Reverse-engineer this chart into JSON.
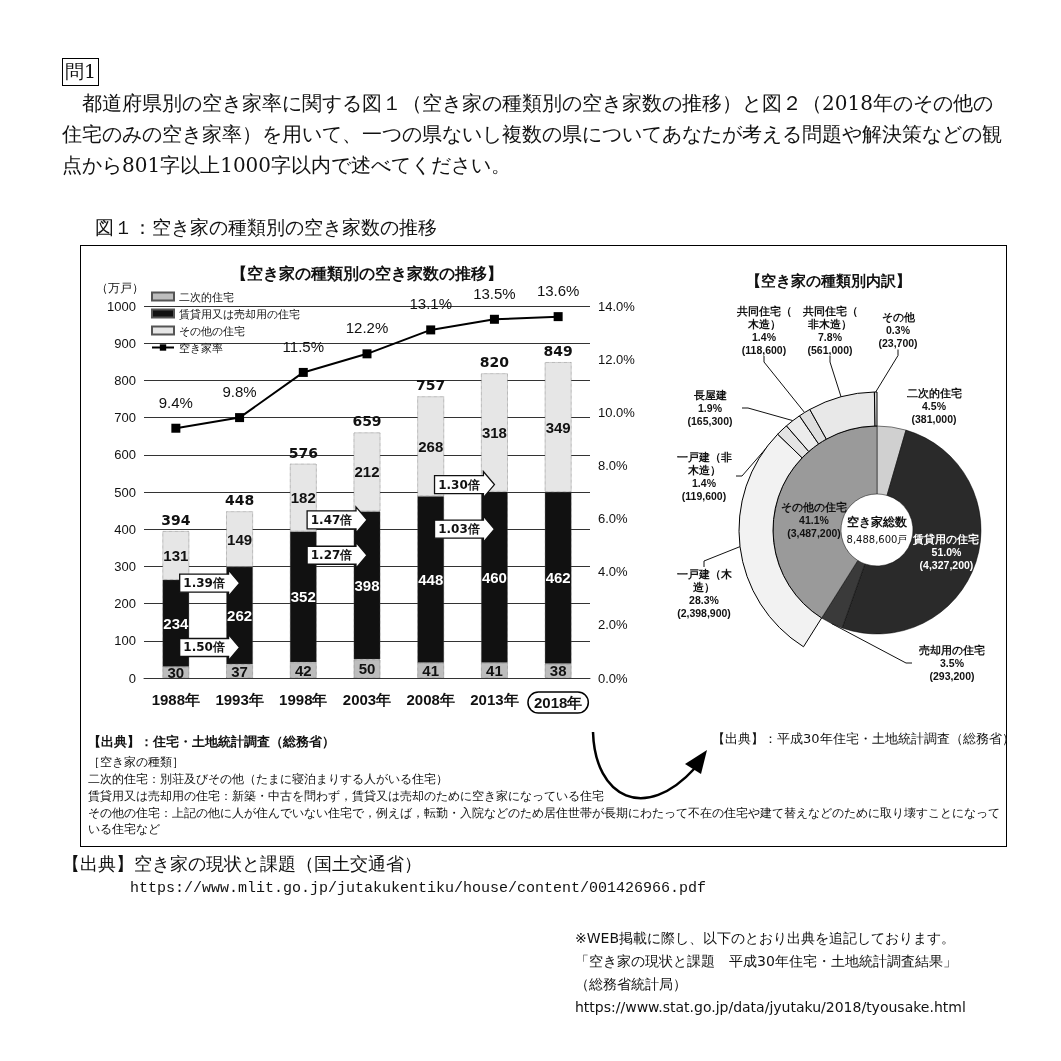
{
  "chart_data": [
    {
      "type": "bar",
      "title": "【空き家の種類別の空き家数の推移】",
      "ylabel": "（万戸）",
      "categories": [
        "1988年",
        "1993年",
        "1998年",
        "2003年",
        "2008年",
        "2013年",
        "2018年"
      ],
      "series": [
        {
          "name": "二次的住宅",
          "color": "#bdbdbd",
          "values": [
            30,
            37,
            42,
            50,
            41,
            41,
            38
          ]
        },
        {
          "name": "賃貸用又は売却用の住宅",
          "color": "#111111",
          "values": [
            234,
            262,
            352,
            398,
            448,
            460,
            462
          ]
        },
        {
          "name": "その他の住宅",
          "color": "#e6e6e6",
          "values": [
            131,
            149,
            182,
            212,
            268,
            318,
            349
          ]
        },
        {
          "name": "空き家率",
          "type": "line",
          "axis": "y2",
          "color": "#000000",
          "values": [
            9.4,
            9.8,
            11.5,
            12.2,
            13.1,
            13.5,
            13.6
          ],
          "value_labels": [
            "9.4%",
            "9.8%",
            "11.5%",
            "12.2%",
            "13.1%",
            "13.5%",
            "13.6%"
          ]
        }
      ],
      "stacked": true,
      "data_labels": true,
      "totals": [
        "394",
        "448",
        "576",
        "659",
        "757",
        "820",
        "849"
      ],
      "ylim": [
        0,
        1000
      ],
      "yticks": [
        0,
        100,
        200,
        300,
        400,
        500,
        600,
        700,
        800,
        900,
        1000
      ],
      "y2lim": [
        0,
        14
      ],
      "y2ticks": [
        {
          "value": 0,
          "label": "0.0%"
        },
        {
          "value": 2,
          "label": "2.0%"
        },
        {
          "value": 4,
          "label": "4.0%"
        },
        {
          "value": 6,
          "label": "6.0%"
        },
        {
          "value": 8,
          "label": "8.0%"
        },
        {
          "value": 10,
          "label": "10.0%"
        },
        {
          "value": 12,
          "label": "12.0%"
        },
        {
          "value": 14,
          "label": "14.0%"
        }
      ],
      "grid": "y",
      "legend": "top left",
      "marker": "square",
      "annotations": [
        "問1",
        "都道府県別の空き家率に関する図１（空き家の種類別の空き家数の推移）と図２（2018年のその他の住宅のみの空き家率）を用いて、一つの県ないし複数の県についてあなたが考える問題や解決策などの観点から801字以上1000字以内で述べてください。",
        "図１：空き家の種類別の空き家数の推移",
        "【出典】：住宅・土地統計調査（総務省）",
        "［空き家の種類］",
        "二次的住宅：別荘及びその他（たまに寝泊まりする人がいる住宅）",
        "賃貸用又は売却用の住宅：新築・中古を問わず，賃貸又は売却のために空き家になっている住宅",
        "その他の住宅：上記の他に人が住んでいない住宅で，例えば，転勤・入院などのため居住世帯が長期にわたって不在の住宅や建て替えなどのために取り壊すことになっている住宅など",
        "【出典】空き家の現状と課題（国土交通省）",
        "https://www.mlit.go.jp/jutakukentiku/house/content/001426966.pdf",
        "※WEB掲載に際し、以下のとおり出典を追記しております。",
        "「空き家の現状と課題　平成30年住宅・土地統計調査結果」",
        "（総務省統計局）",
        "https://www.stat.go.jp/data/jyutaku/2018/tyousake.html",
        "1.50倍",
        "1.39倍",
        "1.27倍",
        "1.47倍",
        "1.03倍",
        "1.30倍"
      ]
    },
    {
      "type": "donut",
      "title": "【空き家の種類別内訳】",
      "categories": [
        "二次的住宅",
        "賃貸用の住宅",
        "売却用の住宅",
        "その他の住宅"
      ],
      "values": [
        4.5,
        51.0,
        3.5,
        41.1
      ],
      "colors": [
        "#d0d0d0",
        "#2a2a2a",
        "#3a3a3a",
        "#9a9a9a"
      ],
      "value_labels": [
        "4.5%\n(381,000)",
        "51.0%\n(4,327,200)",
        "3.5%\n(293,200)",
        "41.1%\n(3,487,200)"
      ],
      "annotations": [
        "空き家総数",
        "8,488,600戸",
        "【出典】：平成30年住宅・土地統計調査（総務省）"
      ]
    },
    {
      "type": "donut",
      "categories": [
        "一戸建（木造）",
        "一戸建（非木造）",
        "長屋建",
        "共同住宅（木造）",
        "共同住宅（非木造）",
        "その他"
      ],
      "values": [
        28.3,
        1.4,
        1.9,
        1.4,
        7.8,
        0.3
      ],
      "colors": [
        "#f2f2f2",
        "#e4e4e4",
        "#ececec",
        "#dedede",
        "#e8e8e8",
        "#d8d8d8"
      ],
      "value_labels": [
        "28.3%\n(2,398,900)",
        "1.4%\n(119,600)",
        "1.9%\n(165,300)",
        "1.4%\n(118,600)",
        "7.8%\n(561,000)",
        "0.3%\n(23,700)"
      ]
    }
  ]
}
